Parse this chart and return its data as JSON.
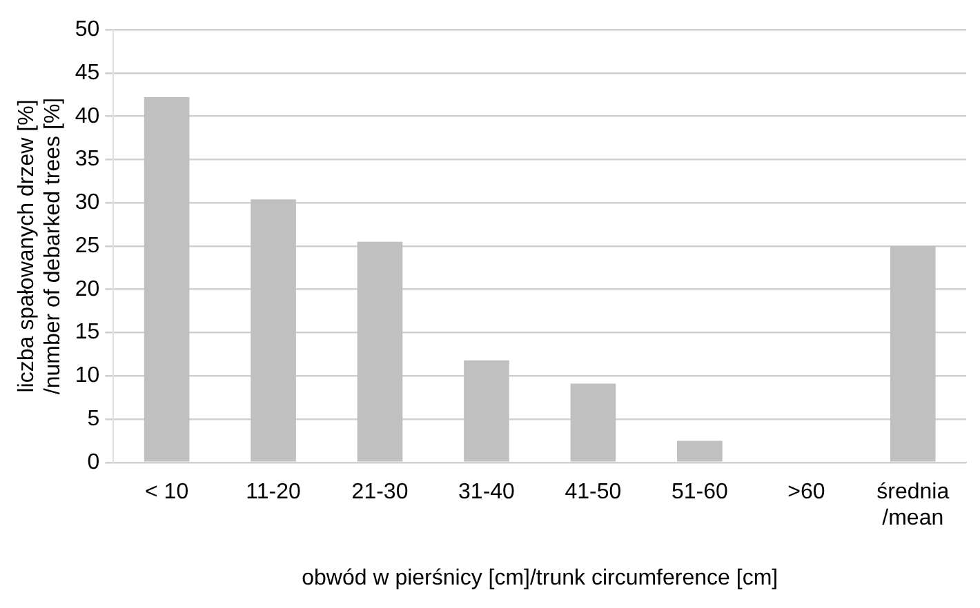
{
  "chart_data": {
    "type": "bar",
    "xlabel": "obwód w pierśnicy [cm]/trunk circumference [cm]",
    "ylabel": "liczba spałowanych drzew [%]\n/number of debarked trees [%]",
    "categories": [
      "< 10",
      "11-20",
      "21-30",
      "31-40",
      "41-50",
      "51-60",
      ">60",
      "średnia\n/mean"
    ],
    "values": [
      42.2,
      30.4,
      25.5,
      11.8,
      9.1,
      2.5,
      0,
      25
    ],
    "color": "#c0c0c0",
    "ylim": [
      0,
      50
    ],
    "yticks": [
      0,
      5,
      10,
      15,
      20,
      25,
      30,
      35,
      40,
      45,
      50
    ],
    "grid": "y",
    "legend": false
  }
}
